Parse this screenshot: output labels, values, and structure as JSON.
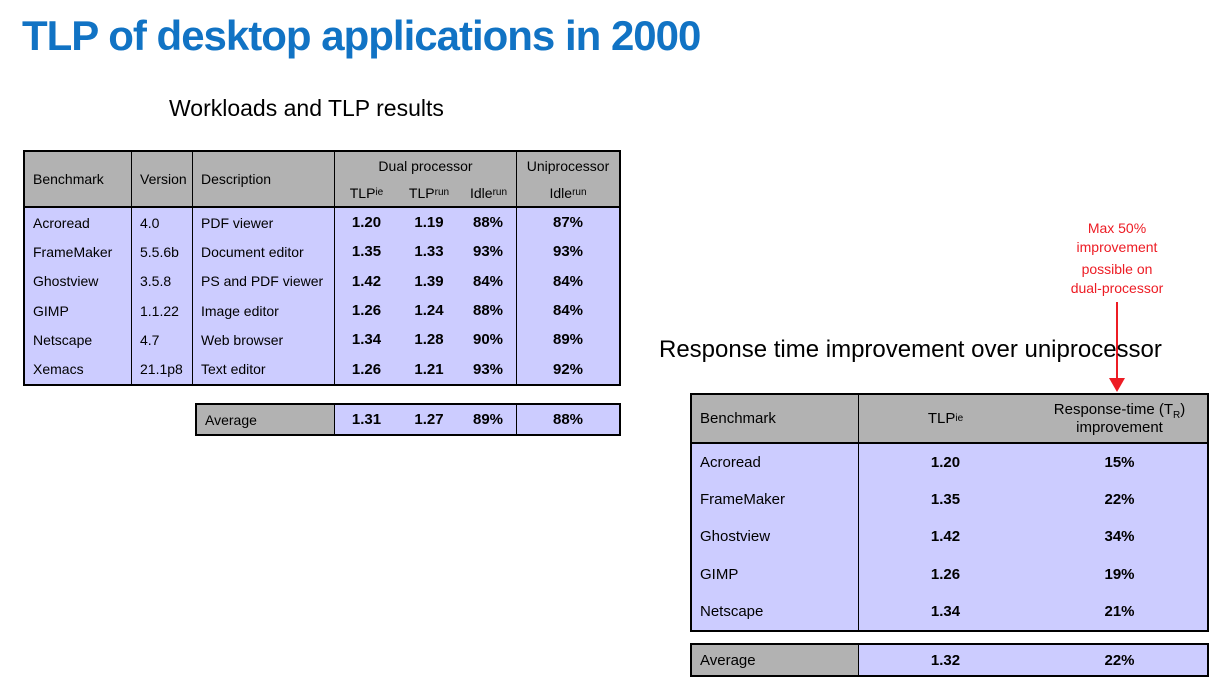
{
  "page": {
    "title": "TLP of desktop applications in 2000"
  },
  "colors": {
    "title_blue": "#1173c4",
    "header_gray": "#b2b2b2",
    "cell_lavender": "#ccccff",
    "annotation_red": "#ed1c24",
    "border_black": "#000000"
  },
  "workloads": {
    "caption": "Workloads and TLP results",
    "headers": {
      "benchmark": "Benchmark",
      "version": "Version",
      "description": "Description",
      "dual_processor": "Dual processor",
      "uniprocessor": "Uniprocessor",
      "tlp_base": "TLP",
      "tlp_ie_sub": "ie",
      "tlp_run_sub": "run",
      "idle_base": "Idle",
      "idle_run_sub": "run"
    },
    "rows": [
      {
        "benchmark": "Acroread",
        "version": "4.0",
        "description": "PDF viewer",
        "tlp_ie": "1.20",
        "tlp_run": "1.19",
        "idle_run": "88%",
        "uni_idle": "87%"
      },
      {
        "benchmark": "FrameMaker",
        "version": "5.5.6b",
        "description": "Document editor",
        "tlp_ie": "1.35",
        "tlp_run": "1.33",
        "idle_run": "93%",
        "uni_idle": "93%"
      },
      {
        "benchmark": "Ghostview",
        "version": "3.5.8",
        "description": "PS and PDF viewer",
        "tlp_ie": "1.42",
        "tlp_run": "1.39",
        "idle_run": "84%",
        "uni_idle": "84%"
      },
      {
        "benchmark": "GIMP",
        "version": "1.1.22",
        "description": "Image editor",
        "tlp_ie": "1.26",
        "tlp_run": "1.24",
        "idle_run": "88%",
        "uni_idle": "84%"
      },
      {
        "benchmark": "Netscape",
        "version": "4.7",
        "description": "Web browser",
        "tlp_ie": "1.34",
        "tlp_run": "1.28",
        "idle_run": "90%",
        "uni_idle": "89%"
      },
      {
        "benchmark": "Xemacs",
        "version": "21.1p8",
        "description": "Text editor",
        "tlp_ie": "1.26",
        "tlp_run": "1.21",
        "idle_run": "93%",
        "uni_idle": "92%"
      }
    ],
    "average": {
      "label": "Average",
      "tlp_ie": "1.31",
      "tlp_run": "1.27",
      "idle_run": "89%",
      "uni_idle": "88%"
    }
  },
  "annotation": {
    "line1": "Max 50%",
    "line2": "improvement",
    "line3": "possible on",
    "line4": "dual-processor"
  },
  "response": {
    "caption": "Response time improvement over uniprocessor",
    "headers": {
      "benchmark": "Benchmark",
      "tlp_base": "TLP",
      "tlp_ie_sub": "ie",
      "improvement_pre": "Response-time (T",
      "improvement_sub": "R",
      "improvement_post": ")",
      "improvement_line2": "improvement"
    },
    "rows": [
      {
        "benchmark": "Acroread",
        "tlp_ie": "1.20",
        "improvement": "15%"
      },
      {
        "benchmark": "FrameMaker",
        "tlp_ie": "1.35",
        "improvement": "22%"
      },
      {
        "benchmark": "Ghostview",
        "tlp_ie": "1.42",
        "improvement": "34%"
      },
      {
        "benchmark": "GIMP",
        "tlp_ie": "1.26",
        "improvement": "19%"
      },
      {
        "benchmark": "Netscape",
        "tlp_ie": "1.34",
        "improvement": "21%"
      }
    ],
    "average": {
      "label": "Average",
      "tlp_ie": "1.32",
      "improvement": "22%"
    }
  }
}
